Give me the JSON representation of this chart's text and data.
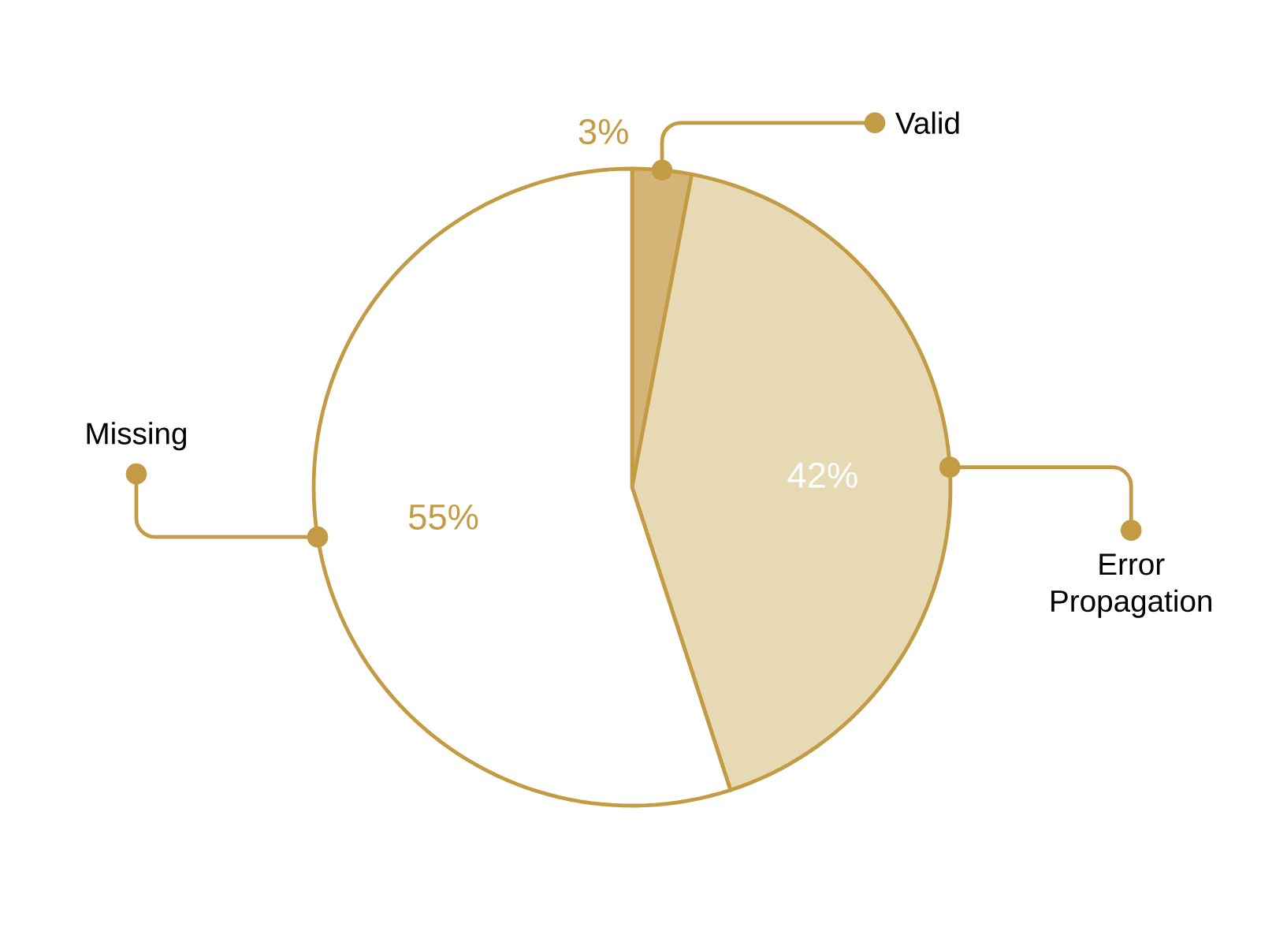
{
  "chart_data": {
    "type": "pie",
    "categories": [
      "Valid",
      "Error Propagation",
      "Missing"
    ],
    "values": [
      3,
      42,
      55
    ],
    "value_labels": [
      "3%",
      "42%",
      "55%"
    ],
    "colors": [
      "#d4b577",
      "#e8d9b5",
      "#ffffff"
    ]
  }
}
